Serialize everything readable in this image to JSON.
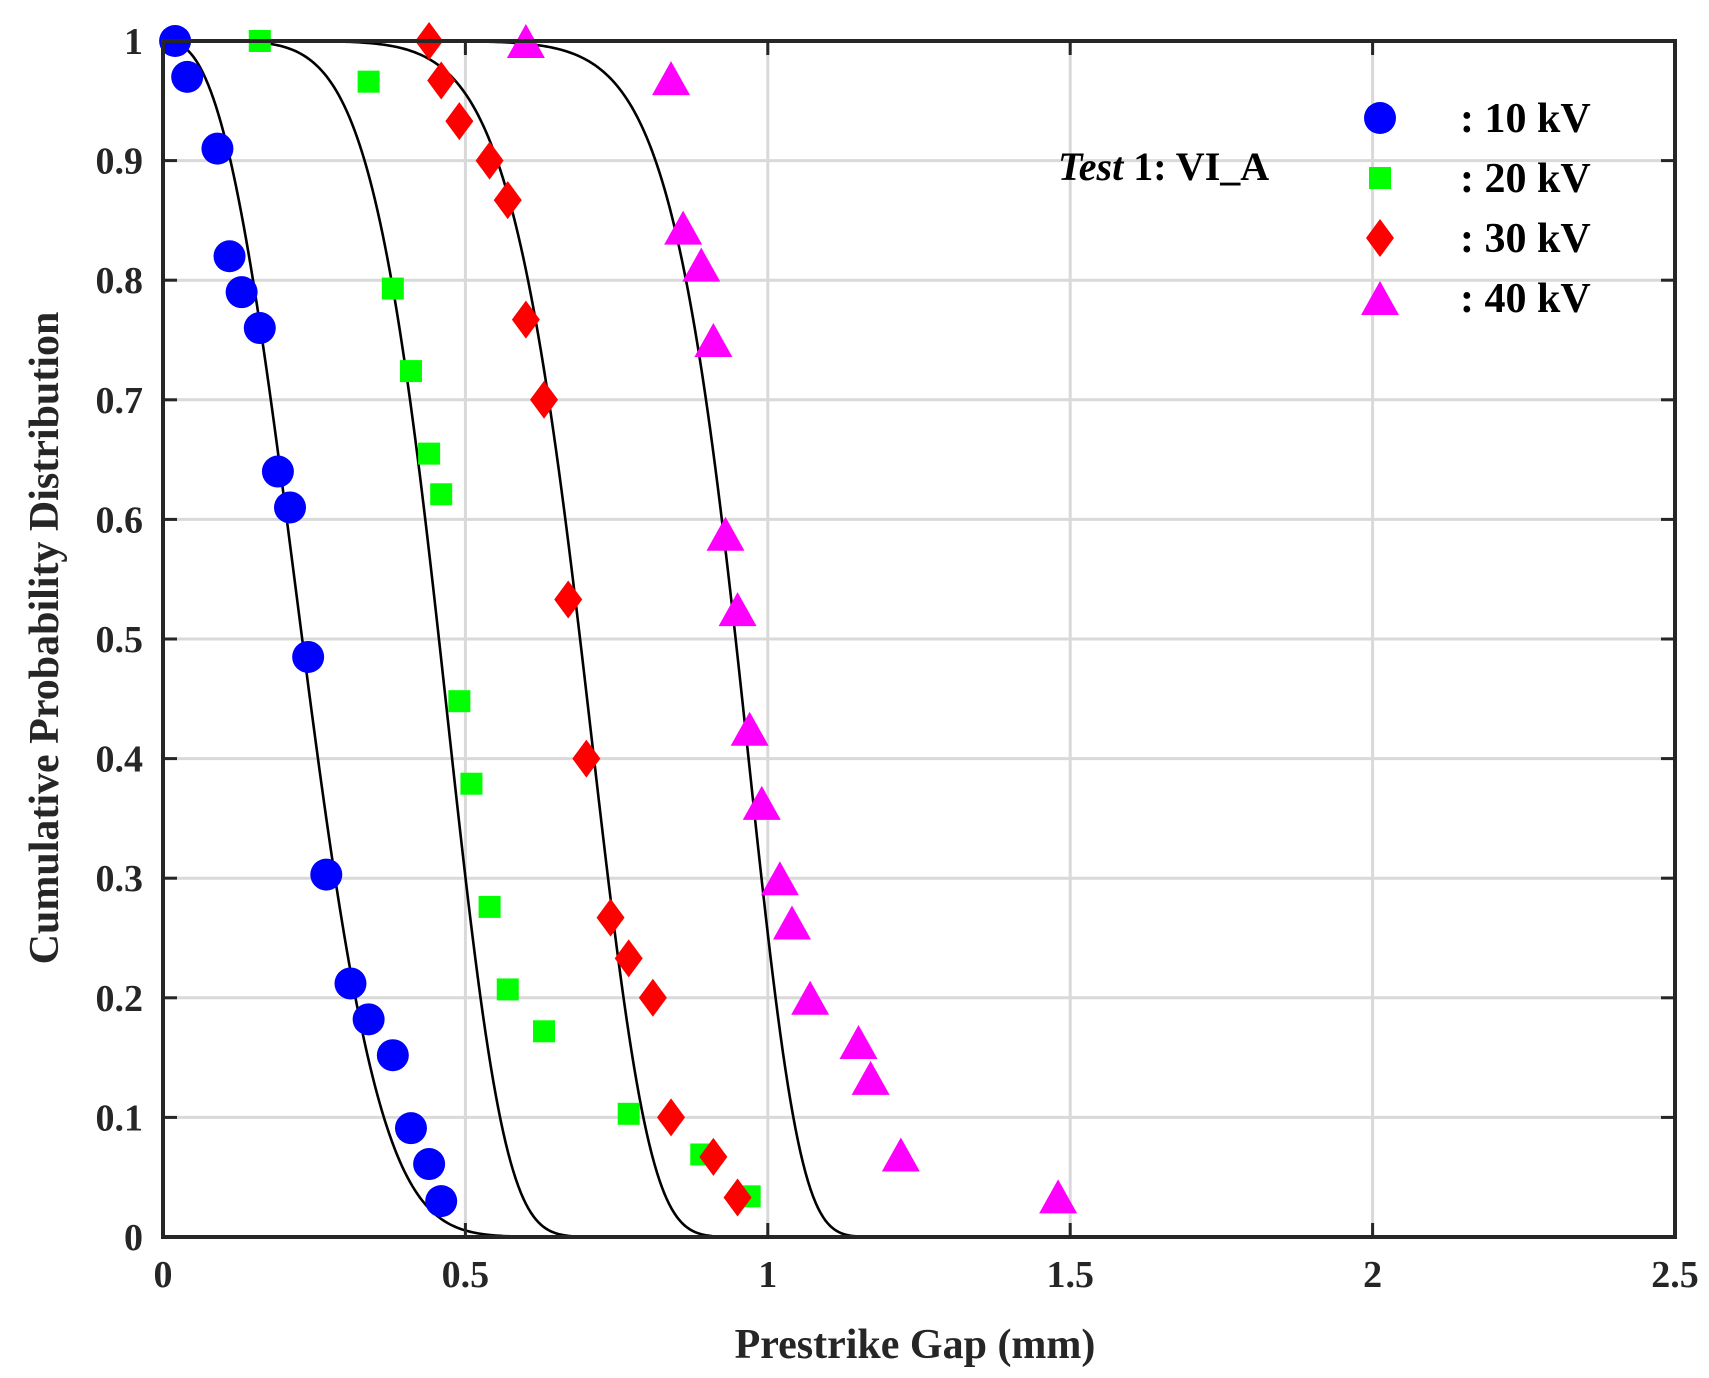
{
  "chart_data": {
    "type": "scatter",
    "title": "",
    "xlabel": "Prestrike Gap (mm)",
    "ylabel": "Cumulative Probability Distribution",
    "xlim": [
      0,
      2.5
    ],
    "ylim": [
      0,
      1
    ],
    "xticks": [
      "0",
      "0.5",
      "1",
      "1.5",
      "2",
      "2.5"
    ],
    "yticks": [
      "0",
      "0.1",
      "0.2",
      "0.3",
      "0.4",
      "0.5",
      "0.6",
      "0.7",
      "0.8",
      "0.9",
      "1"
    ],
    "xtick_values": [
      0,
      0.5,
      1,
      1.5,
      2,
      2.5
    ],
    "ytick_values": [
      0,
      0.1,
      0.2,
      0.3,
      0.4,
      0.5,
      0.6,
      0.7,
      0.8,
      0.9,
      1
    ],
    "grid": true,
    "legend_position": "top-right",
    "annotation": {
      "italic_part": "Test",
      "rest": " 1: VI_A"
    },
    "series": [
      {
        "name": ": 10 kV",
        "marker": "circle",
        "color": "#0000ff",
        "x": [
          0.02,
          0.04,
          0.09,
          0.11,
          0.13,
          0.16,
          0.19,
          0.21,
          0.24,
          0.27,
          0.31,
          0.34,
          0.38,
          0.41,
          0.44,
          0.46
        ],
        "y": [
          1.0,
          0.97,
          0.91,
          0.82,
          0.79,
          0.76,
          0.64,
          0.61,
          0.485,
          0.303,
          0.212,
          0.182,
          0.152,
          0.091,
          0.061,
          0.03
        ]
      },
      {
        "name": ": 20 kV",
        "marker": "square",
        "color": "#00ff00",
        "x": [
          0.16,
          0.34,
          0.38,
          0.41,
          0.44,
          0.46,
          0.49,
          0.51,
          0.54,
          0.57,
          0.63,
          0.77,
          0.89,
          0.97
        ],
        "y": [
          1.0,
          0.966,
          0.793,
          0.724,
          0.655,
          0.621,
          0.448,
          0.379,
          0.276,
          0.207,
          0.172,
          0.103,
          0.069,
          0.034
        ]
      },
      {
        "name": ": 30 kV",
        "marker": "diamond",
        "color": "#ff0000",
        "x": [
          0.44,
          0.46,
          0.49,
          0.54,
          0.57,
          0.6,
          0.63,
          0.67,
          0.7,
          0.74,
          0.77,
          0.81,
          0.84,
          0.91,
          0.95
        ],
        "y": [
          1.0,
          0.967,
          0.933,
          0.9,
          0.867,
          0.767,
          0.7,
          0.533,
          0.4,
          0.267,
          0.233,
          0.2,
          0.1,
          0.067,
          0.033
        ]
      },
      {
        "name": ": 40 kV",
        "marker": "triangle",
        "color": "#ff00ff",
        "x": [
          0.6,
          0.84,
          0.86,
          0.89,
          0.91,
          0.93,
          0.95,
          0.97,
          0.99,
          1.02,
          1.04,
          1.07,
          1.15,
          1.17,
          1.22,
          1.48
        ],
        "y": [
          1.0,
          0.969,
          0.844,
          0.813,
          0.75,
          0.588,
          0.525,
          0.425,
          0.363,
          0.3,
          0.263,
          0.2,
          0.163,
          0.133,
          0.069,
          0.034
        ]
      }
    ],
    "fit_curves": [
      {
        "name": "10 kV fit",
        "type": "weibull-complement",
        "scale": 0.265,
        "shape": 2.6,
        "color": "#000000"
      },
      {
        "name": "20 kV fit",
        "type": "weibull-complement",
        "scale": 0.485,
        "shape": 6.0,
        "color": "#000000"
      },
      {
        "name": "30 kV fit",
        "type": "weibull-complement",
        "scale": 0.72,
        "shape": 8.5,
        "color": "#000000"
      },
      {
        "name": "40 kV fit",
        "type": "weibull-complement",
        "scale": 0.975,
        "shape": 12.5,
        "color": "#000000"
      }
    ]
  }
}
